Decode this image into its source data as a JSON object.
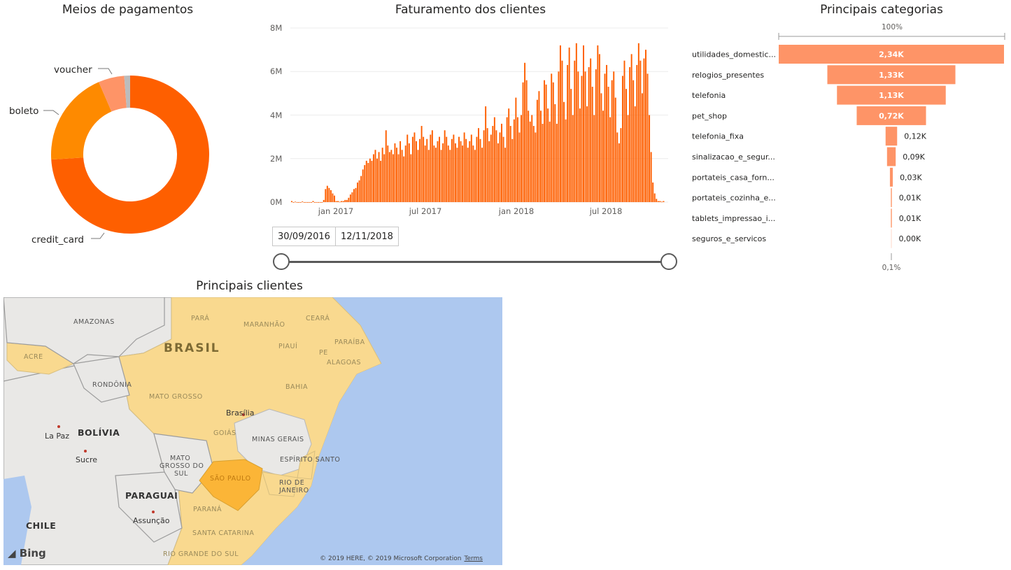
{
  "donut": {
    "title": "Meios de pagamentos",
    "labels": [
      "voucher",
      "boleto",
      "credit_card"
    ],
    "chart_data": {
      "type": "pie",
      "title": "Meios de pagamentos",
      "slices": [
        {
          "label": "credit_card",
          "value": 74,
          "color": "#fe5f00"
        },
        {
          "label": "boleto",
          "value": 19.5,
          "color": "#fe8a00"
        },
        {
          "label": "voucher",
          "value": 5.3,
          "color": "#fe9467"
        },
        {
          "label": "",
          "value": 1.2,
          "color": "#bcbcbc"
        }
      ]
    }
  },
  "revenue": {
    "title": "Faturamento dos clientes",
    "y_ticks": [
      "8M",
      "6M",
      "4M",
      "2M",
      "0M"
    ],
    "x_ticks": [
      "jan 2017",
      "jul 2017",
      "jan 2018",
      "jul 2018"
    ],
    "date_from": "30/09/2016",
    "date_to": "12/11/2018",
    "chart_data": {
      "type": "bar",
      "title": "Faturamento dos clientes",
      "ylim": [
        0,
        8000000
      ],
      "x_range": [
        "2016-09-30",
        "2018-11-12"
      ],
      "color": "#fe5f00",
      "series_note": "daily revenue",
      "values": [
        0.05,
        0,
        0.02,
        0,
        0,
        0,
        0.03,
        0,
        0,
        0,
        0,
        0,
        0.05,
        0,
        0,
        0,
        0,
        0,
        0.1,
        0.6,
        0.75,
        0.65,
        0.55,
        0.4,
        0.3,
        0.05,
        0.05,
        0.02,
        0.05,
        0.05,
        0.1,
        0.1,
        0.2,
        0.35,
        0.45,
        0.6,
        0.65,
        0.9,
        1.0,
        1.2,
        1.5,
        1.7,
        1.9,
        1.8,
        2.0,
        1.9,
        2.2,
        2.4,
        2.0,
        2.3,
        1.9,
        2.5,
        2.2,
        3.3,
        2.6,
        2.3,
        2.4,
        2.2,
        2.7,
        2.5,
        2.2,
        2.8,
        2.4,
        2.1,
        2.6,
        3.1,
        2.7,
        2.2,
        3.0,
        3.2,
        2.8,
        2.4,
        2.9,
        3.5,
        3.0,
        2.6,
        2.9,
        2.4,
        3.1,
        3.3,
        2.6,
        2.5,
        2.8,
        3.0,
        2.4,
        2.7,
        3.3,
        3.0,
        2.6,
        2.4,
        2.9,
        3.1,
        2.7,
        2.5,
        3.0,
        2.8,
        2.6,
        3.2,
        2.9,
        2.5,
        2.8,
        3.1,
        2.6,
        2.4,
        3.0,
        3.4,
        2.9,
        2.5,
        3.3,
        4.4,
        3.4,
        2.8,
        3.1,
        3.5,
        3.9,
        3.3,
        2.7,
        3.2,
        3.6,
        3.0,
        2.5,
        3.9,
        4.3,
        3.5,
        2.9,
        3.8,
        4.8,
        3.9,
        3.2,
        4.0,
        5.5,
        6.4,
        5.6,
        4.2,
        3.7,
        4.0,
        3.5,
        3.2,
        4.7,
        5.1,
        4.2,
        3.6,
        5.6,
        5.4,
        4.3,
        3.7,
        5.9,
        5.5,
        4.5,
        3.6,
        6.0,
        7.2,
        6.5,
        4.6,
        3.8,
        6.3,
        7.1,
        5.2,
        4.0,
        6.5,
        7.3,
        6.0,
        4.3,
        5.8,
        7.2,
        6.0,
        4.4,
        6.2,
        6.6,
        5.3,
        4.0,
        6.1,
        7.2,
        6.8,
        5.0,
        4.2,
        5.9,
        6.3,
        5.3,
        3.9,
        5.6,
        6.0,
        4.8,
        3.2,
        2.7,
        3.4,
        5.8,
        6.5,
        5.2,
        4.0,
        6.2,
        6.8,
        5.6,
        4.4,
        6.3,
        7.3,
        6.5,
        5.0,
        6.6,
        7.0,
        5.9,
        4.0,
        2.3,
        0.9,
        0.4,
        0.15,
        0.05,
        0.05,
        0.02,
        0.05
      ]
    }
  },
  "funnel": {
    "title": "Principais categorias",
    "top_pct": "100%",
    "bottom_pct": "0,1%",
    "bar_color": "#fe9467",
    "chart_data": {
      "type": "bar",
      "title": "Principais categorias",
      "categories": [
        "utilidades_domestic...",
        "relogios_presentes",
        "telefonia",
        "pet_shop",
        "telefonia_fixa",
        "sinalizacao_e_segur...",
        "portateis_casa_forn...",
        "portateis_cozinha_e...",
        "tablets_impressao_i...",
        "seguros_e_servicos"
      ],
      "values": [
        2340,
        1330,
        1130,
        720,
        120,
        90,
        30,
        10,
        10,
        0
      ],
      "value_labels": [
        "2,34K",
        "1,33K",
        "1,13K",
        "0,72K",
        "0,12K",
        "0,09K",
        "0,03K",
        "0,01K",
        "0,01K",
        "0,00K"
      ]
    }
  },
  "map": {
    "title": "Principais clientes",
    "labels": {
      "amazonas": "AMAZONAS",
      "para": "PARÁ",
      "maranhao": "MARANHÃO",
      "ceara": "CEARÁ",
      "brasil": "BRASIL",
      "paraiba": "PARAÍBA",
      "piaui": "PIAUÍ",
      "pe": "PE",
      "alagoas": "ALAGOAS",
      "acre": "ACRE",
      "rondonia": "RONDÔNIA",
      "bahia": "BAHIA",
      "mato_grosso": "MATO GROSSO",
      "brasilia": "Brasília",
      "goias": "GOIÁS",
      "minas": "MINAS GERAIS",
      "bolivia": "BOLÍVIA",
      "la_paz": "La Paz",
      "sucre": "Sucre",
      "mato_grosso_do_sul_1": "MATO",
      "mato_grosso_do_sul_2": "GROSSO DO",
      "mato_grosso_do_sul_3": "SUL",
      "espirito_santo": "ESPÍRITO SANTO",
      "sao_paulo": "SÃO PAULO",
      "rio_1": "RIO DE",
      "rio_2": "JANEIRO",
      "paraguai": "PARAGUAI",
      "assuncao": "Assunção",
      "parana": "PARANÁ",
      "chile": "CHILE",
      "santa_catarina": "SANTA CATARINA",
      "rio_grande_do_sul": "RIO GRANDE DO SUL"
    },
    "bing": "Bing",
    "copyright": "© 2019 HERE, © 2019 Microsoft Corporation",
    "terms": "Terms"
  }
}
